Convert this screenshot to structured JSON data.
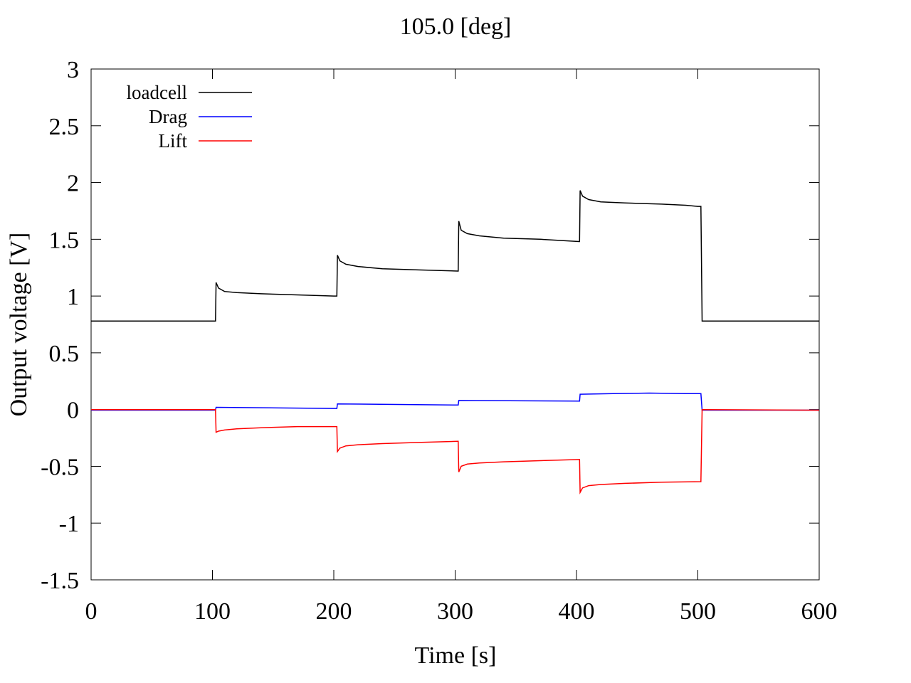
{
  "chart_data": {
    "type": "line",
    "title": "105.0 [deg]",
    "xlabel": "Time [s]",
    "ylabel": "Output voltage [V]",
    "xlim": [
      0,
      600
    ],
    "ylim": [
      -1.5,
      3
    ],
    "xticks": [
      "0",
      "100",
      "200",
      "300",
      "400",
      "500",
      "600"
    ],
    "yticks": [
      "3",
      "2.5",
      "2",
      "1.5",
      "1",
      "0.5",
      "0",
      "-0.5",
      "-1",
      "-1.5"
    ],
    "grid": false,
    "legend_position": "top-left",
    "series": [
      {
        "name": "loadcell",
        "color": "#000000",
        "x": [
          0,
          102.5,
          103,
          105,
          110,
          120,
          140,
          170,
          200,
          202.5,
          203,
          205,
          210,
          220,
          240,
          270,
          302,
          302.5,
          303,
          305,
          310,
          320,
          340,
          370,
          402,
          402.5,
          403,
          405,
          410,
          420,
          440,
          470,
          490,
          500,
          502.5,
          503.5,
          600
        ],
        "y": [
          0.78,
          0.78,
          1.12,
          1.07,
          1.04,
          1.03,
          1.02,
          1.01,
          1.0,
          1.0,
          1.36,
          1.31,
          1.28,
          1.26,
          1.24,
          1.23,
          1.22,
          1.22,
          1.66,
          1.58,
          1.55,
          1.53,
          1.51,
          1.5,
          1.48,
          1.48,
          1.93,
          1.88,
          1.85,
          1.83,
          1.82,
          1.81,
          1.8,
          1.79,
          1.79,
          0.78,
          0.78
        ]
      },
      {
        "name": "Drag",
        "color": "#0000ff",
        "x": [
          0,
          102.5,
          103,
          200,
          202.5,
          203,
          302,
          302.5,
          303,
          402,
          402.5,
          403,
          430,
          460,
          490,
          502.5,
          503.5,
          600
        ],
        "y": [
          -0.005,
          -0.005,
          0.02,
          0.01,
          0.01,
          0.05,
          0.04,
          0.04,
          0.08,
          0.075,
          0.075,
          0.135,
          0.14,
          0.145,
          0.14,
          0.14,
          -0.005,
          -0.005
        ]
      },
      {
        "name": "Lift",
        "color": "#ff0000",
        "x": [
          0,
          102.5,
          103,
          105,
          110,
          120,
          140,
          170,
          200,
          202.5,
          203,
          205,
          210,
          220,
          240,
          270,
          302,
          302.5,
          303,
          305,
          310,
          320,
          340,
          370,
          402,
          402.5,
          403,
          405,
          410,
          420,
          440,
          470,
          502.5,
          503.5,
          600
        ],
        "y": [
          0.0,
          0.0,
          -0.2,
          -0.19,
          -0.18,
          -0.17,
          -0.16,
          -0.15,
          -0.15,
          -0.15,
          -0.37,
          -0.34,
          -0.32,
          -0.31,
          -0.3,
          -0.29,
          -0.28,
          -0.28,
          -0.55,
          -0.5,
          -0.48,
          -0.47,
          -0.46,
          -0.45,
          -0.44,
          -0.44,
          -0.73,
          -0.69,
          -0.67,
          -0.66,
          -0.65,
          -0.64,
          -0.635,
          0.0,
          -0.005
        ]
      }
    ]
  }
}
